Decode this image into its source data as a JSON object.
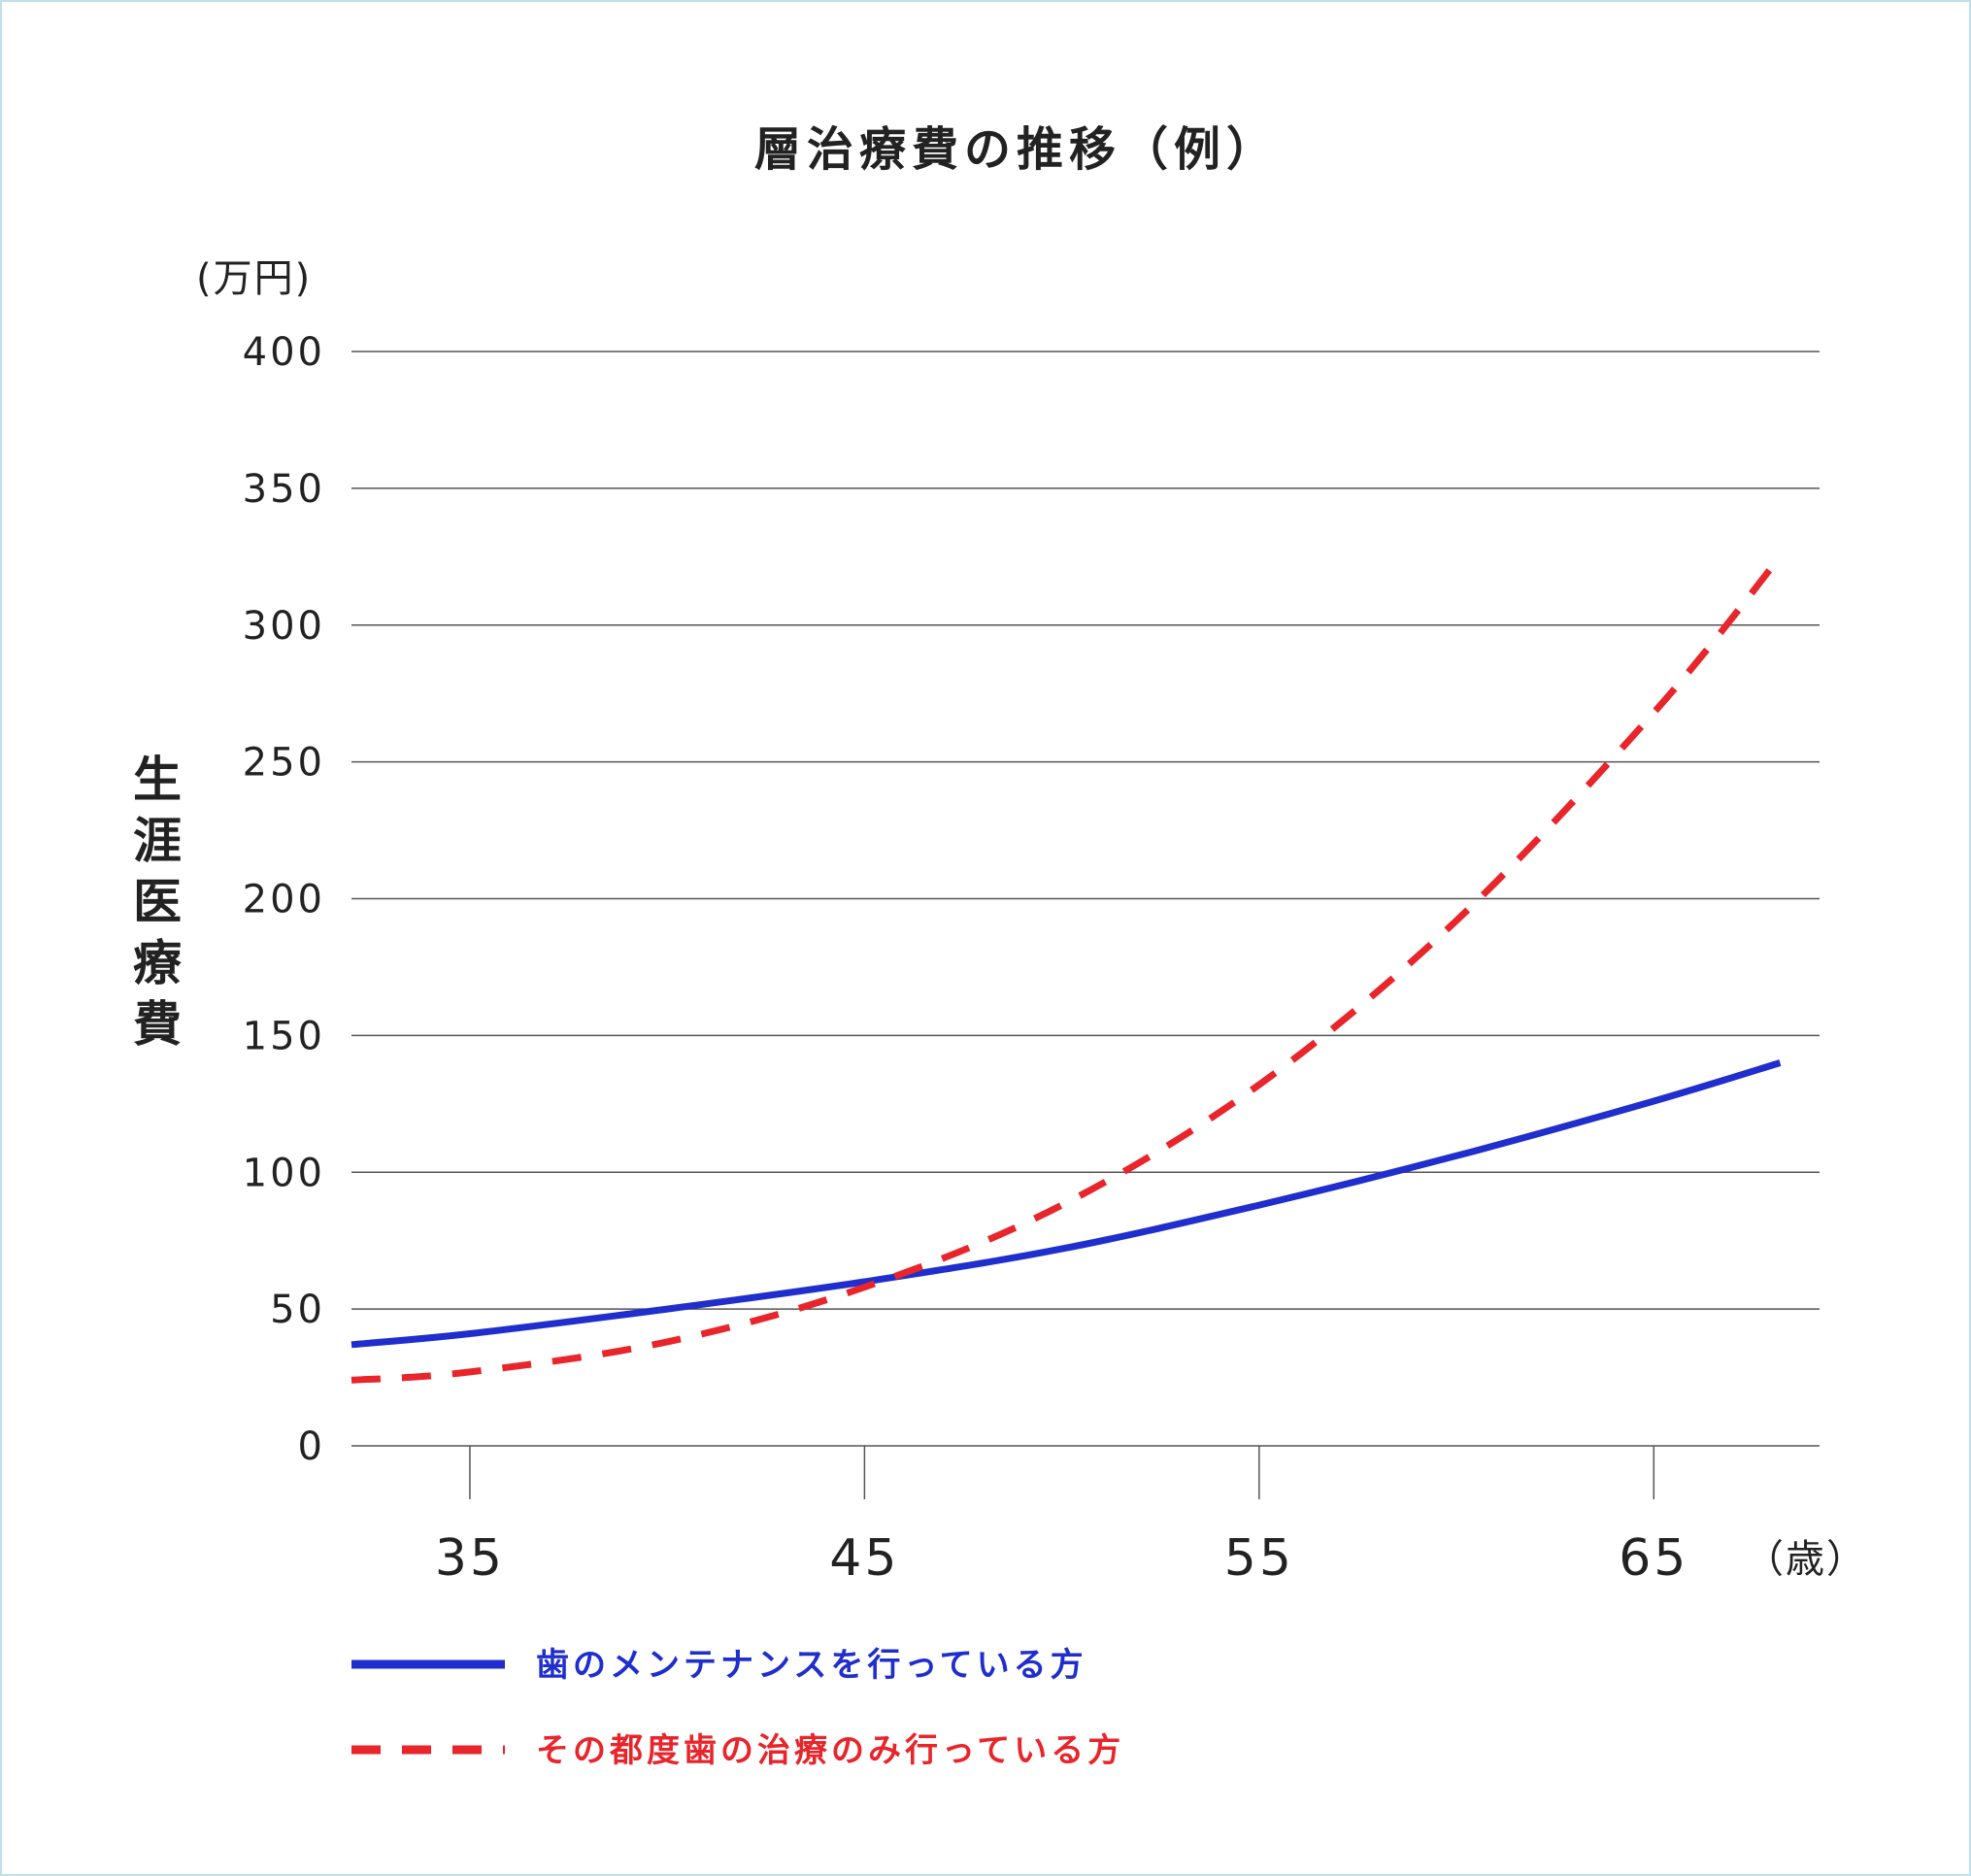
{
  "chart_data": {
    "type": "line",
    "title": "層治療費の推移（例）",
    "ylabel": "生涯医療費",
    "y_unit": "(万円)",
    "x_unit": "（歳）",
    "xlabel": "",
    "xlim": [
      32,
      69.2
    ],
    "ylim": [
      0,
      400
    ],
    "y_ticks": [
      "0",
      "50",
      "100",
      "150",
      "200",
      "250",
      "300",
      "350",
      "400"
    ],
    "x_ticks": [
      "35",
      "45",
      "55",
      "65"
    ],
    "grid": true,
    "legend_position": "bottom-left",
    "series": [
      {
        "name": "歯のメンテナンスを行っている方",
        "style": "solid",
        "color": "#1f2ecc",
        "x": [
          32,
          35,
          40,
          45,
          50,
          55,
          60,
          65,
          68.2
        ],
        "values": [
          37,
          41,
          50,
          60,
          72,
          88,
          106,
          126,
          140
        ]
      },
      {
        "name": "その都度歯の治療のみ行っている方",
        "style": "dashed",
        "color": "#e8252b",
        "x": [
          32,
          35,
          40,
          45,
          50,
          55,
          60,
          65,
          68.2
        ],
        "values": [
          24,
          27,
          38,
          58,
          88,
          132,
          192,
          268,
          325
        ]
      }
    ]
  }
}
